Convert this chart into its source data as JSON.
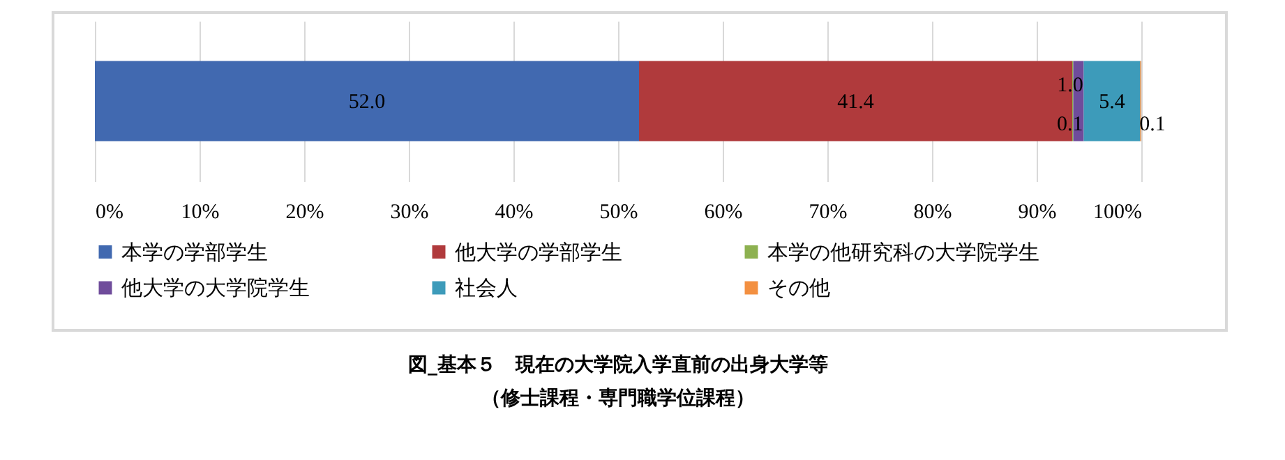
{
  "chart_data": {
    "type": "bar",
    "orientation": "horizontal",
    "stacked": true,
    "title": "図_基本５　現在の大学院入学直前の出身大学等",
    "subtitle": "（修士課程・専門職学位課程）",
    "categories": [
      null
    ],
    "series": [
      {
        "name": "本学の学部学生",
        "color": "#4169b0",
        "values": [
          52.0
        ],
        "value_labels": [
          "52.0"
        ]
      },
      {
        "name": "他大学の学部学生",
        "color": "#b03a3c",
        "values": [
          41.4
        ],
        "value_labels": [
          "41.4"
        ]
      },
      {
        "name": "本学の他研究科の大学院学生",
        "color": "#8db150",
        "values": [
          0.1
        ],
        "value_labels": [
          "0.1"
        ]
      },
      {
        "name": "他大学の大学院学生",
        "color": "#6f4c9b",
        "values": [
          1.0
        ],
        "value_labels": [
          "1.0"
        ]
      },
      {
        "name": "社会人",
        "color": "#3d9bba",
        "values": [
          5.4
        ],
        "value_labels": [
          "5.4"
        ]
      },
      {
        "name": "その他",
        "color": "#f39041",
        "values": [
          0.1
        ],
        "value_labels": [
          "0.1"
        ]
      }
    ],
    "xlim": [
      0,
      100
    ],
    "xticks": [
      {
        "value": 0,
        "label": "0%"
      },
      {
        "value": 10,
        "label": "10%"
      },
      {
        "value": 20,
        "label": "20%"
      },
      {
        "value": 30,
        "label": "30%"
      },
      {
        "value": 40,
        "label": "40%"
      },
      {
        "value": 50,
        "label": "50%"
      },
      {
        "value": 60,
        "label": "60%"
      },
      {
        "value": 70,
        "label": "70%"
      },
      {
        "value": 80,
        "label": "80%"
      },
      {
        "value": 90,
        "label": "90%"
      },
      {
        "value": 100,
        "label": "100%"
      }
    ],
    "grid": "x",
    "legend": "bottom"
  }
}
